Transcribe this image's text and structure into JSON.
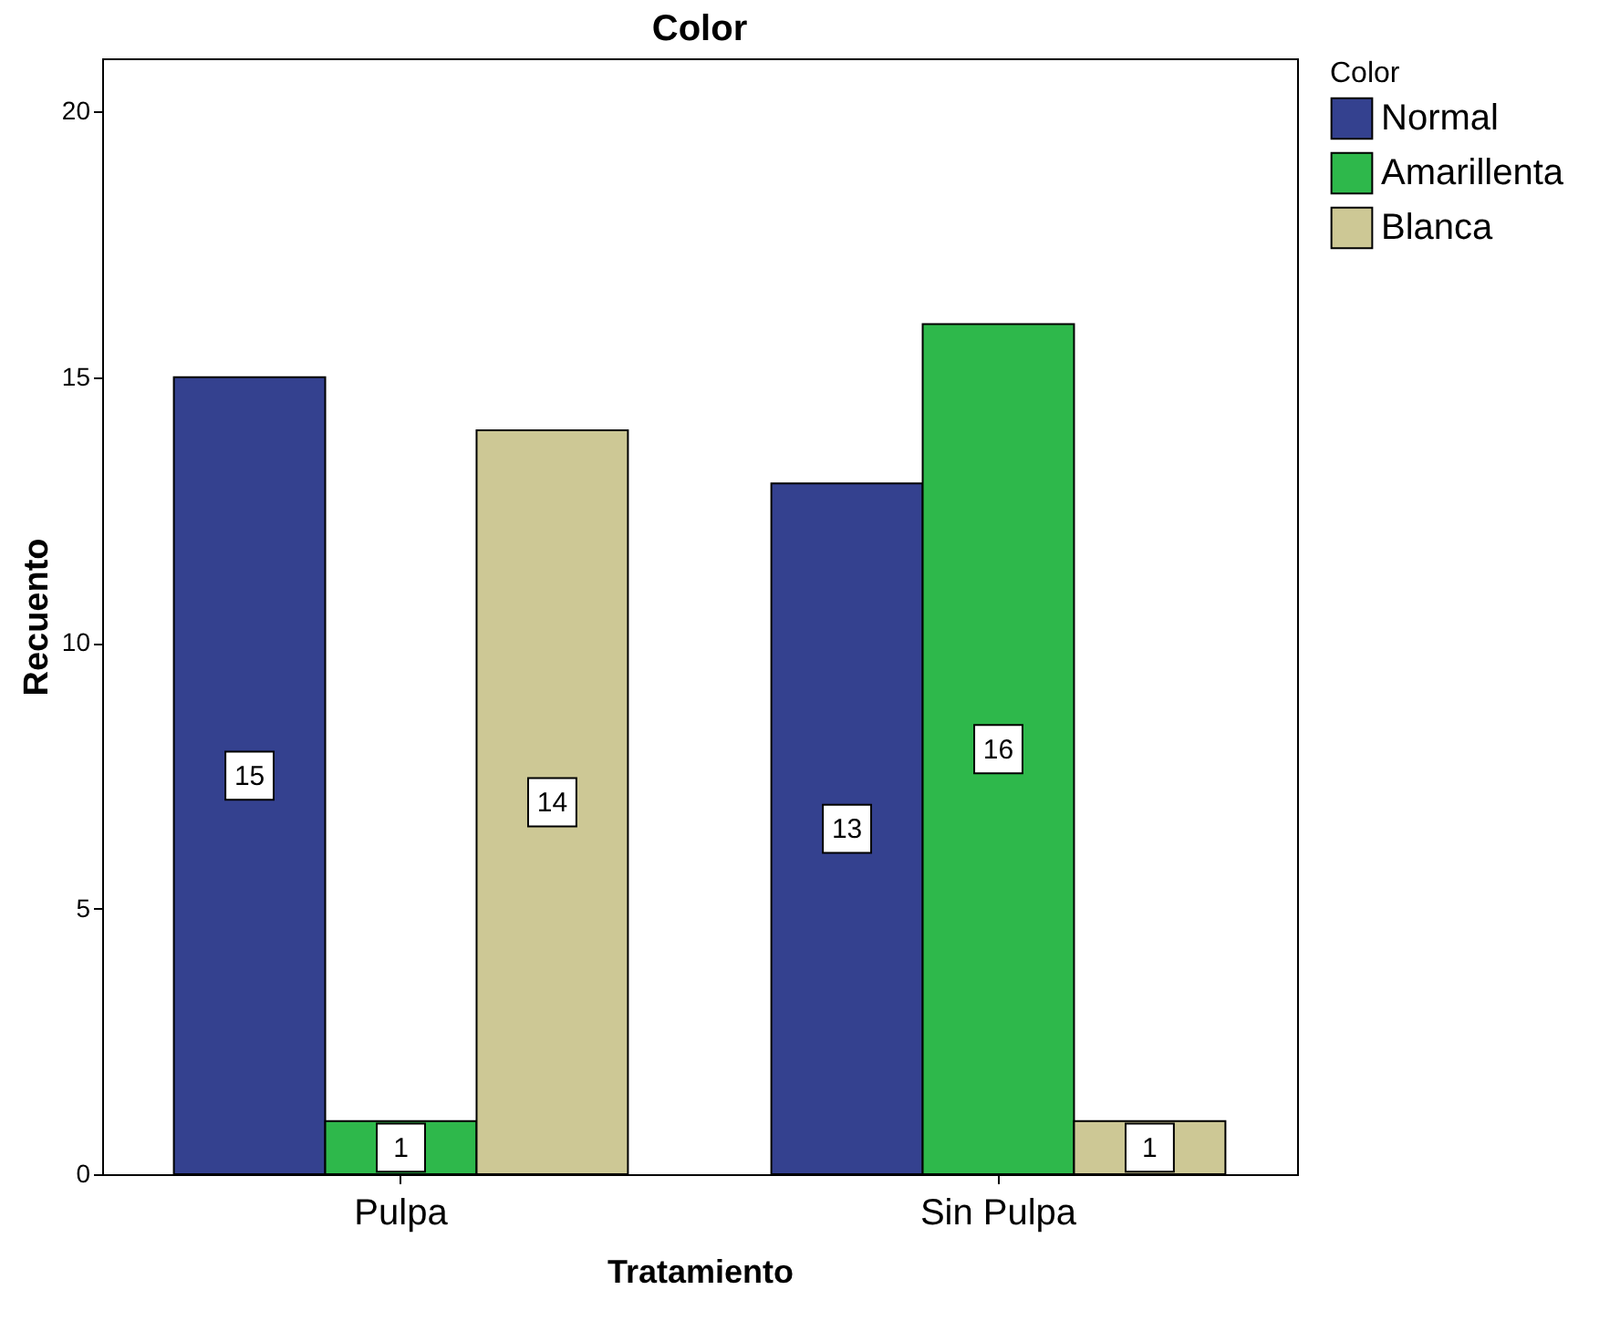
{
  "chart_data": {
    "type": "bar",
    "title": "Color",
    "xlabel": "Tratamiento",
    "ylabel": "Recuento",
    "legend_title": "Color",
    "categories": [
      "Pulpa",
      "Sin Pulpa"
    ],
    "series": [
      {
        "name": "Normal",
        "color": "#34418f",
        "values": [
          15,
          13
        ]
      },
      {
        "name": "Amarillenta",
        "color": "#2eb84b",
        "values": [
          1,
          16
        ]
      },
      {
        "name": "Blanca",
        "color": "#cdc895",
        "values": [
          14,
          1
        ]
      }
    ],
    "ylim": [
      0,
      21
    ],
    "yticks": [
      0,
      5,
      10,
      15,
      20
    ],
    "grid": false,
    "legend": "right",
    "data_labels": true
  }
}
